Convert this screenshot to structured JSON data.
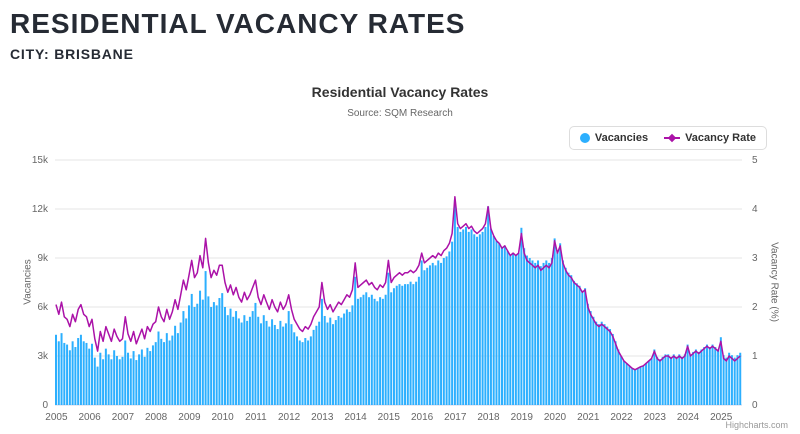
{
  "header": {
    "title": "RESIDENTIAL VACANCY RATES",
    "city_line": "CITY: BRISBANE"
  },
  "chart": {
    "title": "Residential Vacancy Rates",
    "subtitle": "Source: SQM Research",
    "credits": "Highcharts.com",
    "legend": [
      {
        "label": "Vacancies",
        "marker": "circle",
        "color": "#2CAFFE"
      },
      {
        "label": "Vacancy Rate",
        "marker": "line-diamond",
        "color": "#AB12A8"
      }
    ],
    "y_left": {
      "title": "Vacancies",
      "max": 15000,
      "ticks": [
        "0",
        "3k",
        "6k",
        "9k",
        "12k",
        "15k"
      ]
    },
    "y_right": {
      "title": "Vacancy Rate (%)",
      "max": 5,
      "ticks": [
        "0",
        "1",
        "2",
        "3",
        "4",
        "5"
      ]
    },
    "x_labels": [
      "2005",
      "2006",
      "2007",
      "2008",
      "2009",
      "2010",
      "2011",
      "2012",
      "2013",
      "2014",
      "2015",
      "2016",
      "2017",
      "2018",
      "2019",
      "2020",
      "2021",
      "2022",
      "2023",
      "2024",
      "2025"
    ],
    "grid_color": "#e6e6e6",
    "axis_line_color": "#ccd6eb"
  },
  "chart_data": {
    "type": "combo",
    "title": "Residential Vacancy Rates",
    "subtitle": "Source: SQM Research",
    "x_unit": "month",
    "x_start": "2005-01",
    "x_end": "2025-08",
    "xlabel": "",
    "ylabel_left": "Vacancies",
    "ylabel_right": "Vacancy Rate (%)",
    "ylim_left": [
      0,
      15000
    ],
    "ylim_right": [
      0,
      5
    ],
    "legend_position": "top-right",
    "grid": "horizontal",
    "series": [
      {
        "name": "Vacancies",
        "type": "bar",
        "axis": "left",
        "color": "#2CAFFE",
        "values_by_year": [
          [
            4300,
            3900,
            4400,
            3800,
            3700,
            3350,
            3900,
            3550,
            4100,
            4300,
            3900,
            3800
          ],
          [
            3450,
            3750,
            2900,
            2350,
            3200,
            2800,
            3450,
            3100,
            2800,
            3350,
            3000,
            2800
          ],
          [
            2950,
            3950,
            3200,
            2850,
            3300,
            2750,
            3100,
            3400,
            2950,
            3500,
            3300,
            3650
          ],
          [
            3850,
            4500,
            4050,
            3850,
            4400,
            3950,
            4250,
            4850,
            4400,
            5050,
            5750,
            5300
          ],
          [
            6100,
            6800,
            6000,
            6200,
            7000,
            6450,
            8200,
            6650,
            6000,
            6300,
            6100,
            6550
          ],
          [
            6850,
            6000,
            5500,
            5900,
            5400,
            5750,
            5300,
            5050,
            5500,
            5150,
            5400,
            5750
          ],
          [
            6250,
            5400,
            5000,
            5500,
            5150,
            4800,
            5250,
            4900,
            4650,
            5150,
            4800,
            5000
          ],
          [
            5750,
            4950,
            4450,
            4200,
            3950,
            3850,
            4100,
            3950,
            4200,
            4600,
            4850,
            5100
          ],
          [
            6500,
            5450,
            5050,
            5350,
            4950,
            5200,
            5450,
            5350,
            5600,
            5850,
            5700,
            6100
          ],
          [
            7850,
            6500,
            6600,
            6750,
            6900,
            6600,
            6750,
            6500,
            6350,
            6600,
            6500,
            6750
          ],
          [
            8100,
            6900,
            7150,
            7300,
            7400,
            7300,
            7400,
            7400,
            7550,
            7400,
            7550,
            7850
          ],
          [
            8850,
            8250,
            8400,
            8550,
            8700,
            8550,
            8850,
            8700,
            9000,
            9100,
            9400,
            10000
          ],
          [
            12550,
            10900,
            10600,
            10750,
            10900,
            10600,
            10750,
            10450,
            10300,
            10450,
            10600,
            10900
          ],
          [
            12150,
            10800,
            10350,
            10050,
            9900,
            9600,
            9750,
            9450,
            9150,
            9300,
            9150,
            9300
          ],
          [
            10850,
            9600,
            9150,
            9000,
            8850,
            8700,
            8850,
            8500,
            8700,
            8850,
            8700,
            9000
          ],
          [
            10200,
            9450,
            9900,
            8850,
            8400,
            8100,
            7950,
            7600,
            7450,
            7300,
            7000,
            7150
          ],
          [
            6200,
            5750,
            5400,
            5100,
            4950,
            5100,
            4950,
            4800,
            4650,
            4350,
            3900,
            3400
          ],
          [
            3000,
            2700,
            2550,
            2400,
            2250,
            2150,
            2250,
            2350,
            2400,
            2550,
            2700,
            2850
          ],
          [
            3400,
            2950,
            2800,
            2950,
            3100,
            3100,
            2950,
            3100,
            2950,
            3100,
            2950,
            3100
          ],
          [
            3700,
            3100,
            3250,
            3400,
            3250,
            3400,
            3550,
            3700,
            3550,
            3700,
            3550,
            3400
          ],
          [
            4150,
            3050,
            2900,
            3200,
            3050,
            2900,
            3050,
            3200
          ]
        ]
      },
      {
        "name": "Vacancy Rate",
        "type": "line",
        "axis": "right",
        "color": "#AB12A8",
        "values_by_year": [
          [
            2.05,
            1.85,
            2.1,
            1.8,
            1.75,
            1.6,
            1.85,
            1.7,
            1.95,
            2.05,
            1.85,
            1.8
          ],
          [
            1.6,
            1.75,
            1.35,
            1.1,
            1.5,
            1.3,
            1.6,
            1.45,
            1.3,
            1.55,
            1.4,
            1.3
          ],
          [
            1.35,
            1.8,
            1.45,
            1.3,
            1.5,
            1.25,
            1.4,
            1.55,
            1.35,
            1.6,
            1.5,
            1.65
          ],
          [
            1.7,
            2.0,
            1.8,
            1.7,
            1.95,
            1.75,
            1.9,
            2.15,
            1.95,
            2.25,
            2.55,
            2.35
          ],
          [
            2.65,
            2.95,
            2.6,
            2.7,
            3.05,
            2.8,
            3.4,
            2.9,
            2.6,
            2.75,
            2.65,
            2.85
          ],
          [
            2.85,
            2.5,
            2.3,
            2.45,
            2.25,
            2.4,
            2.2,
            2.1,
            2.3,
            2.15,
            2.25,
            2.4
          ],
          [
            2.55,
            2.2,
            2.05,
            2.25,
            2.1,
            1.95,
            2.15,
            2.0,
            1.9,
            2.1,
            1.95,
            2.05
          ],
          [
            2.25,
            1.95,
            1.75,
            1.65,
            1.55,
            1.5,
            1.6,
            1.55,
            1.65,
            1.8,
            1.9,
            2.0
          ],
          [
            2.5,
            2.1,
            1.95,
            2.05,
            1.9,
            2.0,
            2.1,
            2.05,
            2.15,
            2.25,
            2.2,
            2.35
          ],
          [
            2.9,
            2.4,
            2.45,
            2.5,
            2.55,
            2.45,
            2.5,
            2.4,
            2.35,
            2.45,
            2.4,
            2.5
          ],
          [
            2.95,
            2.5,
            2.6,
            2.65,
            2.7,
            2.65,
            2.7,
            2.7,
            2.75,
            2.7,
            2.75,
            2.85
          ],
          [
            3.1,
            2.9,
            2.95,
            3.0,
            3.05,
            3.0,
            3.1,
            3.05,
            3.15,
            3.2,
            3.3,
            3.5
          ],
          [
            4.25,
            3.7,
            3.6,
            3.65,
            3.7,
            3.6,
            3.65,
            3.55,
            3.5,
            3.55,
            3.6,
            3.7
          ],
          [
            4.05,
            3.6,
            3.45,
            3.35,
            3.3,
            3.2,
            3.25,
            3.15,
            3.05,
            3.1,
            3.05,
            3.1
          ],
          [
            3.5,
            3.1,
            2.95,
            2.9,
            2.85,
            2.8,
            2.85,
            2.75,
            2.8,
            2.85,
            2.8,
            2.9
          ],
          [
            3.35,
            3.1,
            3.25,
            2.9,
            2.75,
            2.65,
            2.6,
            2.5,
            2.45,
            2.4,
            2.3,
            2.35
          ],
          [
            2.0,
            1.85,
            1.75,
            1.65,
            1.6,
            1.65,
            1.6,
            1.55,
            1.5,
            1.4,
            1.25,
            1.1
          ],
          [
            1.0,
            0.9,
            0.85,
            0.8,
            0.75,
            0.72,
            0.75,
            0.78,
            0.8,
            0.85,
            0.9,
            0.95
          ],
          [
            1.1,
            0.95,
            0.9,
            0.95,
            1.0,
            1.0,
            0.95,
            1.0,
            0.95,
            1.0,
            0.95,
            1.0
          ],
          [
            1.2,
            1.0,
            1.05,
            1.1,
            1.05,
            1.1,
            1.15,
            1.2,
            1.15,
            1.2,
            1.15,
            1.1
          ],
          [
            1.3,
            0.95,
            0.9,
            1.0,
            0.95,
            0.9,
            0.95,
            1.0
          ]
        ]
      }
    ]
  }
}
